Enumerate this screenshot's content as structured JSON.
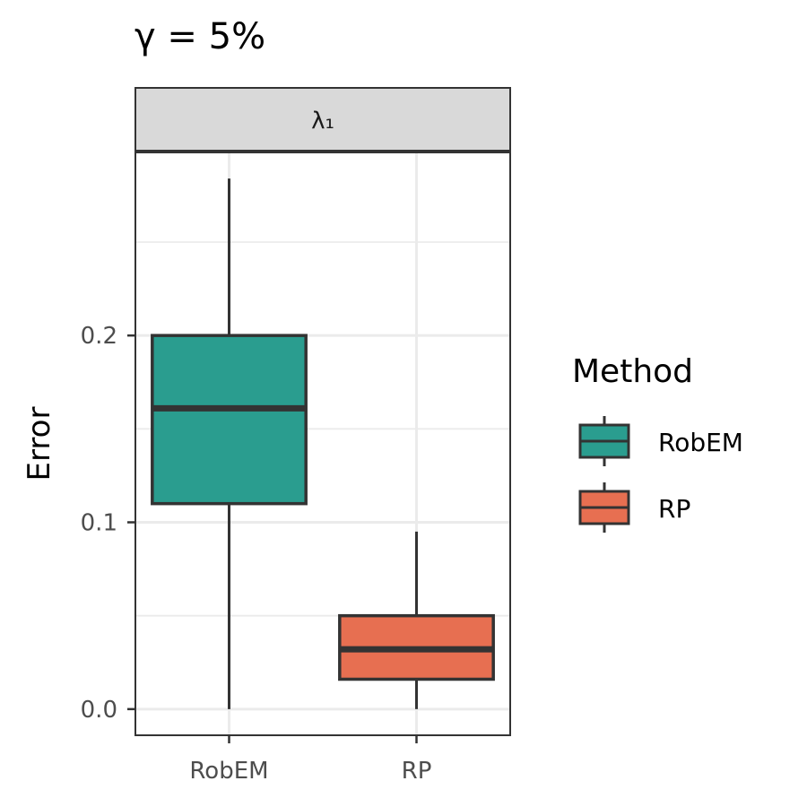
{
  "chart_data": {
    "type": "box",
    "title": "γ = 5%",
    "facet": "λ₁",
    "ylabel": "Error",
    "xlabel": "",
    "ylim": [
      -0.014,
      0.298
    ],
    "yticks": [
      0.0,
      0.1,
      0.2
    ],
    "ytick_labels": [
      "0.0",
      "0.1",
      "0.2"
    ],
    "categories": [
      "RobEM",
      "RP"
    ],
    "boxes": [
      {
        "category": "RobEM",
        "min": 0.0,
        "q1": 0.11,
        "median": 0.161,
        "q3": 0.2,
        "max": 0.284,
        "color": "#2a9d8f"
      },
      {
        "category": "RP",
        "min": 0.0,
        "q1": 0.016,
        "median": 0.032,
        "q3": 0.05,
        "max": 0.095,
        "color": "#e76f51"
      }
    ],
    "legend": {
      "title": "Method",
      "position": "right",
      "entries": [
        {
          "label": "RobEM",
          "color": "#2a9d8f"
        },
        {
          "label": "RP",
          "color": "#e76f51"
        }
      ]
    },
    "grid": true
  }
}
